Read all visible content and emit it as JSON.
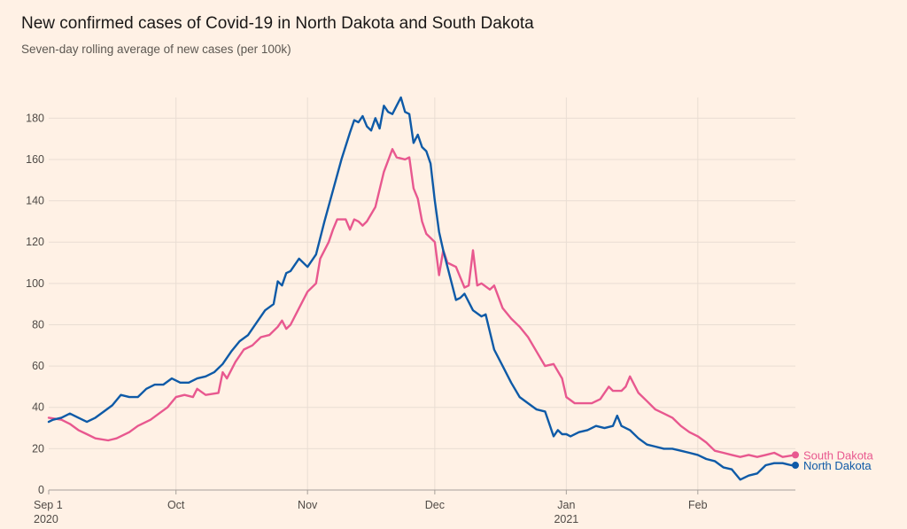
{
  "colors": {
    "background": "#fff1e5",
    "grid": "#e9ddd3",
    "axis": "#a7a09a",
    "south_dakota": "#e8588f",
    "north_dakota": "#0e5aa7"
  },
  "chart_data": {
    "type": "line",
    "title": "New confirmed cases of Covid-19 in North Dakota and South Dakota",
    "subtitle": "Seven-day rolling average of new cases (per 100k)",
    "xlabel": "",
    "ylabel": "",
    "x_range": [
      "2020-09-01",
      "2021-02-24"
    ],
    "ylim": [
      0,
      190
    ],
    "y_ticks": [
      0,
      20,
      40,
      60,
      80,
      100,
      120,
      140,
      160,
      180
    ],
    "x_ticks": [
      {
        "date": "2020-09-01",
        "label": "Sep 1",
        "sublabel": "2020"
      },
      {
        "date": "2020-10-01",
        "label": "Oct",
        "sublabel": ""
      },
      {
        "date": "2020-11-01",
        "label": "Nov",
        "sublabel": ""
      },
      {
        "date": "2020-12-01",
        "label": "Dec",
        "sublabel": ""
      },
      {
        "date": "2021-01-01",
        "label": "Jan",
        "sublabel": "2021"
      },
      {
        "date": "2021-02-01",
        "label": "Feb",
        "sublabel": ""
      }
    ],
    "grid": true,
    "series": [
      {
        "name": "South Dakota",
        "color": "#e8588f",
        "points": [
          [
            "2020-09-01",
            35
          ],
          [
            "2020-09-04",
            34
          ],
          [
            "2020-09-06",
            32
          ],
          [
            "2020-09-08",
            29
          ],
          [
            "2020-09-10",
            27
          ],
          [
            "2020-09-12",
            25
          ],
          [
            "2020-09-15",
            24
          ],
          [
            "2020-09-17",
            25
          ],
          [
            "2020-09-20",
            28
          ],
          [
            "2020-09-22",
            31
          ],
          [
            "2020-09-25",
            34
          ],
          [
            "2020-09-27",
            37
          ],
          [
            "2020-09-29",
            40
          ],
          [
            "2020-10-01",
            45
          ],
          [
            "2020-10-03",
            46
          ],
          [
            "2020-10-05",
            45
          ],
          [
            "2020-10-06",
            49
          ],
          [
            "2020-10-08",
            46
          ],
          [
            "2020-10-11",
            47
          ],
          [
            "2020-10-12",
            57
          ],
          [
            "2020-10-13",
            54
          ],
          [
            "2020-10-15",
            62
          ],
          [
            "2020-10-17",
            68
          ],
          [
            "2020-10-19",
            70
          ],
          [
            "2020-10-21",
            74
          ],
          [
            "2020-10-23",
            75
          ],
          [
            "2020-10-25",
            79
          ],
          [
            "2020-10-26",
            82
          ],
          [
            "2020-10-27",
            78
          ],
          [
            "2020-10-28",
            80
          ],
          [
            "2020-10-30",
            88
          ],
          [
            "2020-11-01",
            96
          ],
          [
            "2020-11-03",
            100
          ],
          [
            "2020-11-04",
            112
          ],
          [
            "2020-11-06",
            120
          ],
          [
            "2020-11-07",
            126
          ],
          [
            "2020-11-08",
            131
          ],
          [
            "2020-11-10",
            131
          ],
          [
            "2020-11-11",
            126
          ],
          [
            "2020-11-12",
            131
          ],
          [
            "2020-11-13",
            130
          ],
          [
            "2020-11-14",
            128
          ],
          [
            "2020-11-15",
            130
          ],
          [
            "2020-11-17",
            137
          ],
          [
            "2020-11-19",
            154
          ],
          [
            "2020-11-21",
            165
          ],
          [
            "2020-11-22",
            161
          ],
          [
            "2020-11-24",
            160
          ],
          [
            "2020-11-25",
            161
          ],
          [
            "2020-11-26",
            146
          ],
          [
            "2020-11-27",
            141
          ],
          [
            "2020-11-28",
            130
          ],
          [
            "2020-11-29",
            124
          ],
          [
            "2020-11-30",
            122
          ],
          [
            "2020-12-01",
            120
          ],
          [
            "2020-12-02",
            104
          ],
          [
            "2020-12-03",
            116
          ],
          [
            "2020-12-04",
            110
          ],
          [
            "2020-12-06",
            108
          ],
          [
            "2020-12-08",
            98
          ],
          [
            "2020-12-09",
            99
          ],
          [
            "2020-12-10",
            116
          ],
          [
            "2020-12-11",
            99
          ],
          [
            "2020-12-12",
            100
          ],
          [
            "2020-12-14",
            97
          ],
          [
            "2020-12-15",
            99
          ],
          [
            "2020-12-17",
            88
          ],
          [
            "2020-12-19",
            83
          ],
          [
            "2020-12-21",
            79
          ],
          [
            "2020-12-23",
            74
          ],
          [
            "2020-12-25",
            67
          ],
          [
            "2020-12-27",
            60
          ],
          [
            "2020-12-29",
            61
          ],
          [
            "2020-12-31",
            54
          ],
          [
            "2021-01-01",
            45
          ],
          [
            "2021-01-03",
            42
          ],
          [
            "2021-01-05",
            42
          ],
          [
            "2021-01-07",
            42
          ],
          [
            "2021-01-09",
            44
          ],
          [
            "2021-01-11",
            50
          ],
          [
            "2021-01-12",
            48
          ],
          [
            "2021-01-14",
            48
          ],
          [
            "2021-01-15",
            50
          ],
          [
            "2021-01-16",
            55
          ],
          [
            "2021-01-18",
            47
          ],
          [
            "2021-01-20",
            43
          ],
          [
            "2021-01-22",
            39
          ],
          [
            "2021-01-24",
            37
          ],
          [
            "2021-01-26",
            35
          ],
          [
            "2021-01-28",
            31
          ],
          [
            "2021-01-30",
            28
          ],
          [
            "2021-02-01",
            26
          ],
          [
            "2021-02-03",
            23
          ],
          [
            "2021-02-05",
            19
          ],
          [
            "2021-02-07",
            18
          ],
          [
            "2021-02-09",
            17
          ],
          [
            "2021-02-11",
            16
          ],
          [
            "2021-02-13",
            17
          ],
          [
            "2021-02-15",
            16
          ],
          [
            "2021-02-17",
            17
          ],
          [
            "2021-02-19",
            18
          ],
          [
            "2021-02-21",
            16
          ],
          [
            "2021-02-24",
            17
          ]
        ]
      },
      {
        "name": "North Dakota",
        "color": "#0e5aa7",
        "points": [
          [
            "2020-09-01",
            33
          ],
          [
            "2020-09-02",
            34
          ],
          [
            "2020-09-04",
            35
          ],
          [
            "2020-09-06",
            37
          ],
          [
            "2020-09-08",
            35
          ],
          [
            "2020-09-10",
            33
          ],
          [
            "2020-09-12",
            35
          ],
          [
            "2020-09-14",
            38
          ],
          [
            "2020-09-16",
            41
          ],
          [
            "2020-09-18",
            46
          ],
          [
            "2020-09-20",
            45
          ],
          [
            "2020-09-22",
            45
          ],
          [
            "2020-09-24",
            49
          ],
          [
            "2020-09-26",
            51
          ],
          [
            "2020-09-28",
            51
          ],
          [
            "2020-09-30",
            54
          ],
          [
            "2020-10-02",
            52
          ],
          [
            "2020-10-04",
            52
          ],
          [
            "2020-10-06",
            54
          ],
          [
            "2020-10-08",
            55
          ],
          [
            "2020-10-10",
            57
          ],
          [
            "2020-10-12",
            61
          ],
          [
            "2020-10-14",
            67
          ],
          [
            "2020-10-16",
            72
          ],
          [
            "2020-10-18",
            75
          ],
          [
            "2020-10-20",
            81
          ],
          [
            "2020-10-22",
            87
          ],
          [
            "2020-10-24",
            90
          ],
          [
            "2020-10-25",
            101
          ],
          [
            "2020-10-26",
            99
          ],
          [
            "2020-10-27",
            105
          ],
          [
            "2020-10-28",
            106
          ],
          [
            "2020-10-30",
            112
          ],
          [
            "2020-11-01",
            108
          ],
          [
            "2020-11-03",
            114
          ],
          [
            "2020-11-05",
            130
          ],
          [
            "2020-11-07",
            145
          ],
          [
            "2020-11-09",
            160
          ],
          [
            "2020-11-11",
            173
          ],
          [
            "2020-11-12",
            179
          ],
          [
            "2020-11-13",
            178
          ],
          [
            "2020-11-14",
            181
          ],
          [
            "2020-11-15",
            176
          ],
          [
            "2020-11-16",
            174
          ],
          [
            "2020-11-17",
            180
          ],
          [
            "2020-11-18",
            175
          ],
          [
            "2020-11-19",
            186
          ],
          [
            "2020-11-20",
            183
          ],
          [
            "2020-11-21",
            182
          ],
          [
            "2020-11-22",
            186
          ],
          [
            "2020-11-23",
            190
          ],
          [
            "2020-11-24",
            183
          ],
          [
            "2020-11-25",
            182
          ],
          [
            "2020-11-26",
            168
          ],
          [
            "2020-11-27",
            172
          ],
          [
            "2020-11-28",
            166
          ],
          [
            "2020-11-29",
            164
          ],
          [
            "2020-11-30",
            158
          ],
          [
            "2020-12-01",
            140
          ],
          [
            "2020-12-02",
            125
          ],
          [
            "2020-12-03",
            116
          ],
          [
            "2020-12-05",
            100
          ],
          [
            "2020-12-06",
            92
          ],
          [
            "2020-12-07",
            93
          ],
          [
            "2020-12-08",
            95
          ],
          [
            "2020-12-10",
            87
          ],
          [
            "2020-12-12",
            84
          ],
          [
            "2020-12-13",
            85
          ],
          [
            "2020-12-15",
            68
          ],
          [
            "2020-12-17",
            60
          ],
          [
            "2020-12-19",
            52
          ],
          [
            "2020-12-21",
            45
          ],
          [
            "2020-12-23",
            42
          ],
          [
            "2020-12-25",
            39
          ],
          [
            "2020-12-27",
            38
          ],
          [
            "2020-12-29",
            26
          ],
          [
            "2020-12-30",
            29
          ],
          [
            "2020-12-31",
            27
          ],
          [
            "2021-01-01",
            27
          ],
          [
            "2021-01-02",
            26
          ],
          [
            "2021-01-04",
            28
          ],
          [
            "2021-01-06",
            29
          ],
          [
            "2021-01-08",
            31
          ],
          [
            "2021-01-10",
            30
          ],
          [
            "2021-01-12",
            31
          ],
          [
            "2021-01-13",
            36
          ],
          [
            "2021-01-14",
            31
          ],
          [
            "2021-01-16",
            29
          ],
          [
            "2021-01-18",
            25
          ],
          [
            "2021-01-20",
            22
          ],
          [
            "2021-01-22",
            21
          ],
          [
            "2021-01-24",
            20
          ],
          [
            "2021-01-26",
            20
          ],
          [
            "2021-01-28",
            19
          ],
          [
            "2021-01-30",
            18
          ],
          [
            "2021-02-01",
            17
          ],
          [
            "2021-02-03",
            15
          ],
          [
            "2021-02-05",
            14
          ],
          [
            "2021-02-07",
            11
          ],
          [
            "2021-02-09",
            10
          ],
          [
            "2021-02-11",
            5
          ],
          [
            "2021-02-13",
            7
          ],
          [
            "2021-02-15",
            8
          ],
          [
            "2021-02-17",
            12
          ],
          [
            "2021-02-19",
            13
          ],
          [
            "2021-02-21",
            13
          ],
          [
            "2021-02-23",
            12
          ],
          [
            "2021-02-24",
            12
          ]
        ]
      }
    ]
  }
}
